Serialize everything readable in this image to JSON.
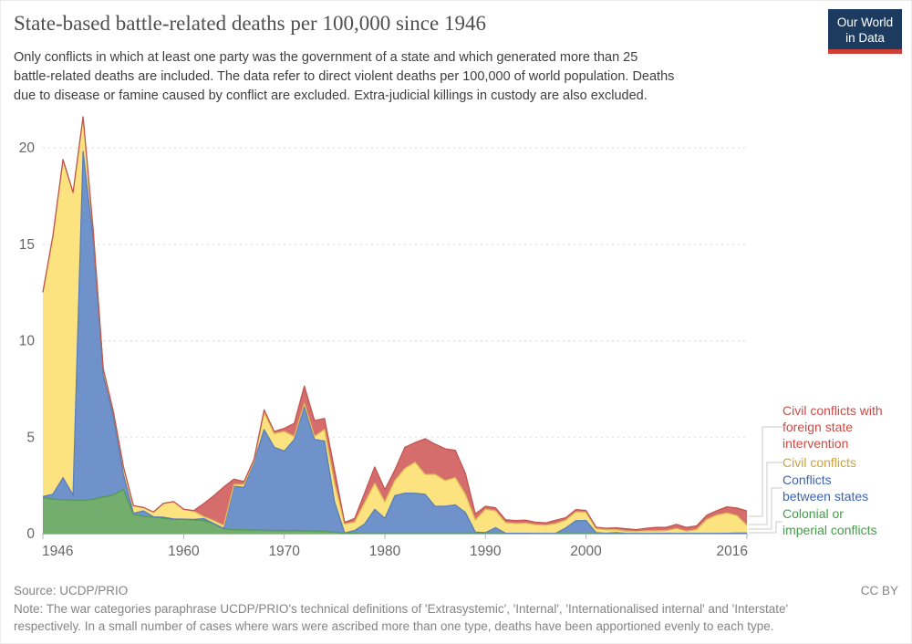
{
  "header": {
    "title": "State-based battle-related deaths per 100,000 since 1946",
    "subtitle_lines": [
      "Only conflicts in which at least one party was the government of a state and which generated more than 25",
      "battle-related deaths are included. The data refer to direct violent deaths per 100,000 of world population. Deaths",
      "due to disease or famine caused by conflict are excluded. Extra-judicial killings in custody are also excluded."
    ],
    "logo": {
      "line1": "Our World",
      "line2": "in Data",
      "bg": "#1d3b5e",
      "stripe": "#cf3e34"
    }
  },
  "chart_data": {
    "type": "area",
    "stacked": true,
    "title": "State-based battle-related deaths per 100,000 since 1946",
    "xlabel": "",
    "ylabel": "deaths per 100,000",
    "ylim": [
      0,
      21.62
    ],
    "grid": "dashed horizontal",
    "legend_position": "right",
    "x": [
      1946,
      1947,
      1948,
      1949,
      1950,
      1951,
      1952,
      1953,
      1954,
      1955,
      1956,
      1957,
      1958,
      1959,
      1960,
      1961,
      1962,
      1963,
      1964,
      1965,
      1966,
      1967,
      1968,
      1969,
      1970,
      1971,
      1972,
      1973,
      1974,
      1975,
      1976,
      1977,
      1978,
      1979,
      1980,
      1981,
      1982,
      1983,
      1984,
      1985,
      1986,
      1987,
      1988,
      1989,
      1990,
      1991,
      1992,
      1993,
      1994,
      1995,
      1996,
      1997,
      1998,
      1999,
      2000,
      2001,
      2002,
      2003,
      2004,
      2005,
      2006,
      2007,
      2008,
      2009,
      2010,
      2011,
      2012,
      2013,
      2014,
      2015,
      2016
    ],
    "x_ticks": [
      1946,
      1960,
      1970,
      1980,
      1990,
      2000,
      2016
    ],
    "y_ticks": [
      0,
      5,
      10,
      15,
      20
    ],
    "series": [
      {
        "name": "Colonial or imperial conflicts",
        "fill": "#74ae6e",
        "stroke": "#549a52",
        "values": [
          1.87,
          1.79,
          1.75,
          1.73,
          1.72,
          1.78,
          1.9,
          2.0,
          2.3,
          1.0,
          0.9,
          0.85,
          0.8,
          0.74,
          0.74,
          0.71,
          0.68,
          0.5,
          0.25,
          0.2,
          0.2,
          0.18,
          0.17,
          0.16,
          0.15,
          0.15,
          0.14,
          0.13,
          0.12,
          0.07,
          0.02,
          0.01,
          0,
          0,
          0,
          0,
          0,
          0,
          0,
          0,
          0,
          0,
          0,
          0,
          0,
          0,
          0,
          0,
          0,
          0,
          0,
          0,
          0,
          0,
          0,
          0,
          0,
          0,
          0,
          0,
          0,
          0,
          0,
          0,
          0,
          0,
          0,
          0,
          0,
          0,
          0
        ]
      },
      {
        "name": "Conflicts between states",
        "fill": "#6e92c9",
        "stroke": "#5a7fb8",
        "values": [
          0.05,
          0.25,
          1.15,
          0.27,
          18.1,
          13.5,
          6.3,
          4.1,
          0.8,
          0.05,
          0.28,
          0.02,
          0.05,
          0.02,
          0.01,
          0.03,
          0.1,
          0.02,
          0.02,
          2.25,
          2.2,
          3.55,
          5.23,
          4.32,
          4.13,
          4.73,
          6.46,
          4.75,
          4.68,
          1.58,
          0.02,
          0.15,
          0.5,
          1.26,
          0.79,
          1.97,
          2.1,
          2.09,
          2.04,
          1.42,
          1.42,
          1.49,
          1.1,
          0.08,
          0.05,
          0.31,
          0.02,
          0.02,
          0.02,
          0.01,
          0.01,
          0.02,
          0.3,
          0.67,
          0.68,
          0.05,
          0.02,
          0.05,
          0.01,
          0.01,
          0.01,
          0.01,
          0.02,
          0.01,
          0.01,
          0.01,
          0.01,
          0.01,
          0.02,
          0.03,
          0.03
        ]
      },
      {
        "name": "Civil conflicts",
        "fill": "#fce380",
        "stroke": "#e0bf56",
        "values": [
          10.6,
          13.4,
          16.5,
          15.7,
          1.8,
          0.5,
          0.35,
          0.25,
          0.4,
          0.4,
          0.18,
          0.25,
          0.72,
          0.9,
          0.51,
          0.42,
          0.1,
          0.15,
          0.15,
          0.1,
          0.15,
          0.05,
          0.87,
          0.7,
          1.02,
          0.16,
          0.15,
          0.16,
          0.6,
          0.95,
          0.45,
          0.44,
          1.1,
          1.35,
          0.85,
          0.78,
          1.28,
          1.61,
          1.03,
          1.65,
          1.33,
          1.41,
          0.94,
          0.62,
          1.21,
          0.87,
          0.55,
          0.5,
          0.52,
          0.45,
          0.42,
          0.5,
          0.4,
          0.46,
          0.42,
          0.2,
          0.18,
          0.15,
          0.12,
          0.1,
          0.13,
          0.13,
          0.14,
          0.25,
          0.12,
          0.2,
          0.72,
          0.95,
          1.05,
          0.9,
          0.4
        ]
      },
      {
        "name": "Civil conflicts with foreign state intervention",
        "fill": "#d66d6d",
        "stroke": "#c25550",
        "values": [
          0,
          0,
          0,
          0,
          0,
          0,
          0,
          0,
          0,
          0,
          0,
          0,
          0,
          0,
          0.01,
          0.03,
          0.68,
          1.3,
          2.0,
          0.28,
          0.15,
          0.08,
          0.15,
          0.12,
          0.16,
          0.68,
          0.9,
          0.82,
          0.57,
          0.7,
          0.09,
          0.19,
          0.52,
          0.85,
          0.64,
          0.55,
          1.1,
          1.02,
          1.85,
          1.57,
          1.65,
          1.42,
          1.1,
          0.32,
          0.16,
          0.16,
          0.15,
          0.16,
          0.16,
          0.13,
          0.13,
          0.18,
          0.13,
          0.12,
          0.1,
          0.08,
          0.08,
          0.1,
          0.12,
          0.1,
          0.14,
          0.18,
          0.17,
          0.22,
          0.19,
          0.19,
          0.22,
          0.23,
          0.32,
          0.4,
          0.75
        ]
      }
    ],
    "axis_colors": {
      "grid": "#d9d9d9",
      "axis": "#b3b3b3",
      "tick_text": "#666666"
    }
  },
  "legend": {
    "entries": [
      {
        "label": "Civil conflicts with foreign state intervention",
        "color": "#cf4a45"
      },
      {
        "label": "Civil conflicts",
        "color": "#cda23a"
      },
      {
        "label": "Conflicts between states",
        "color": "#3d64b1"
      },
      {
        "label": "Colonial or imperial conflicts",
        "color": "#3fa044"
      }
    ]
  },
  "footer": {
    "source": "Source: UCDP/PRIO",
    "license": "CC BY",
    "note_lines": [
      "Note: The war categories paraphrase UCDP/PRIO's technical definitions of 'Extrasystemic', 'Internal', 'Internationalised internal' and 'Interstate'",
      "respectively. In a small number of cases where wars were ascribed more than one type, deaths have been apportioned evenly to each type."
    ]
  }
}
